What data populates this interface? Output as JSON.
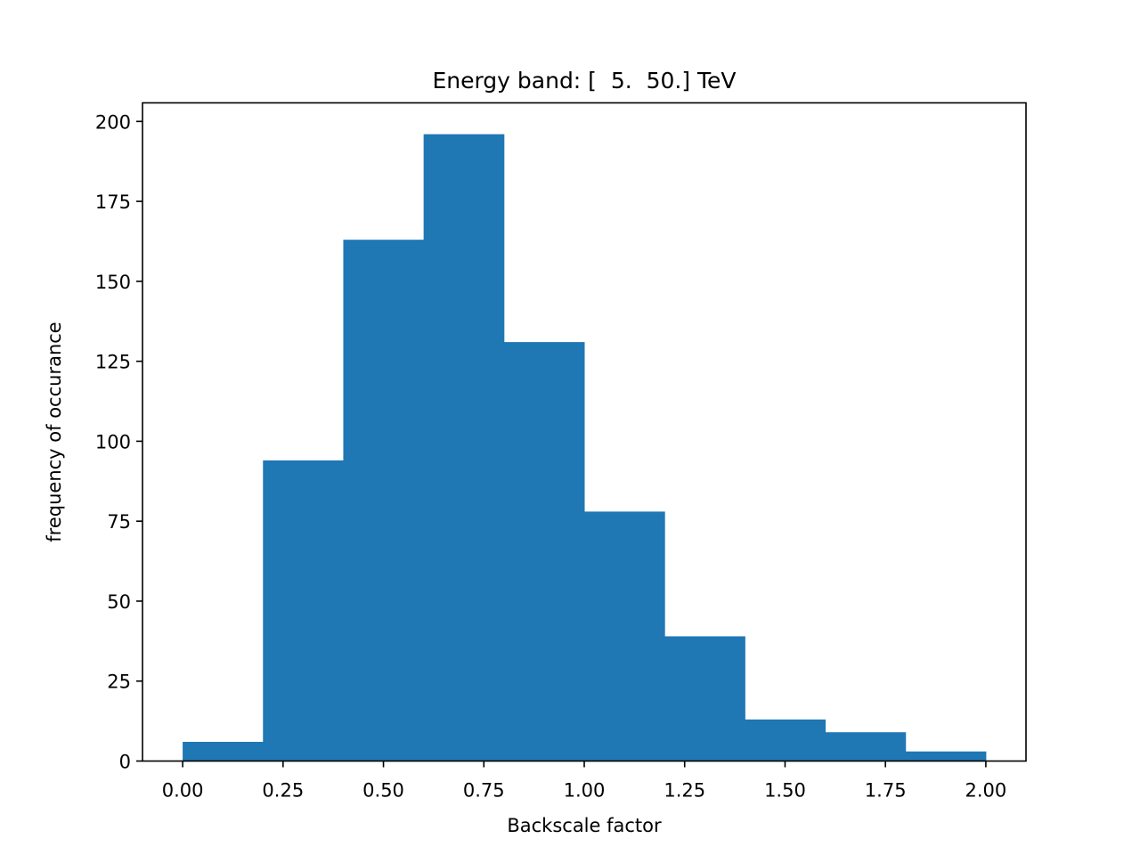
{
  "chart_data": {
    "type": "bar",
    "title": "Energy band: [  5.  50.] TeV",
    "xlabel": "Backscale factor",
    "ylabel": "frequency of occurance",
    "bins": [
      {
        "x0": 0.0,
        "x1": 0.2,
        "count": 6
      },
      {
        "x0": 0.2,
        "x1": 0.4,
        "count": 94
      },
      {
        "x0": 0.4,
        "x1": 0.6,
        "count": 163
      },
      {
        "x0": 0.6,
        "x1": 0.8,
        "count": 196
      },
      {
        "x0": 0.8,
        "x1": 1.0,
        "count": 131
      },
      {
        "x0": 1.0,
        "x1": 1.2,
        "count": 78
      },
      {
        "x0": 1.2,
        "x1": 1.4,
        "count": 39
      },
      {
        "x0": 1.4,
        "x1": 1.6,
        "count": 13
      },
      {
        "x0": 1.6,
        "x1": 1.8,
        "count": 9
      },
      {
        "x0": 1.8,
        "x1": 2.0,
        "count": 3
      }
    ],
    "xlim": [
      -0.1,
      2.1
    ],
    "ylim": [
      0,
      205.8
    ],
    "xticks": [
      "0.00",
      "0.25",
      "0.50",
      "0.75",
      "1.00",
      "1.25",
      "1.50",
      "1.75",
      "2.00"
    ],
    "yticks": [
      "0",
      "25",
      "50",
      "75",
      "100",
      "125",
      "150",
      "175",
      "200"
    ],
    "grid": false,
    "bar_color": "#1f77b4"
  }
}
